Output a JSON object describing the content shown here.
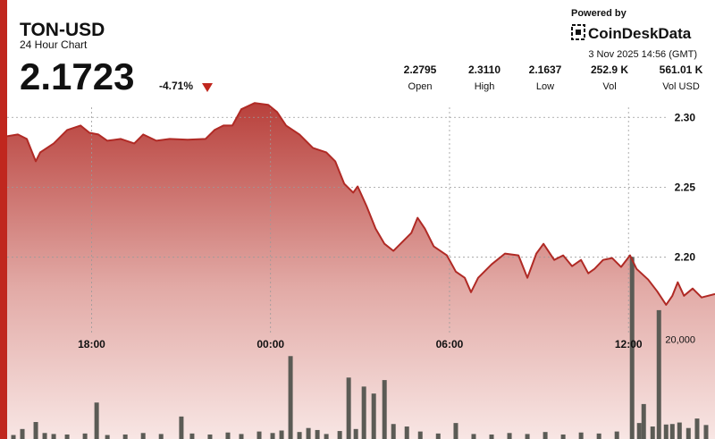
{
  "ticker": "TON-USD",
  "subtitle": "24 Hour Chart",
  "price": "2.1723",
  "change": "-4.71%",
  "powered_by": "Powered by",
  "brand": "CoinDeskData",
  "timestamp": "3 Nov 2025 14:56 (GMT)",
  "stats": [
    {
      "value": "2.2795",
      "label": "Open"
    },
    {
      "value": "2.3110",
      "label": "High"
    },
    {
      "value": "2.1637",
      "label": "Low"
    },
    {
      "value": "252.9 K",
      "label": "Vol"
    },
    {
      "value": "561.01 K",
      "label": "Vol USD"
    }
  ],
  "chart_data": {
    "type": "line",
    "xlim": [
      15.17,
      38.9
    ],
    "xticks": [
      {
        "value": 18,
        "label": "18:00"
      },
      {
        "value": 24,
        "label": "00:00"
      },
      {
        "value": 30,
        "label": "06:00"
      },
      {
        "value": 36,
        "label": "12:00"
      }
    ],
    "ylim": [
      2.07,
      2.32
    ],
    "yticks": [
      {
        "value": 2.3,
        "label": "2.30"
      },
      2.25,
      {
        "value": 2.2,
        "label": "2.20"
      }
    ],
    "y2lim": [
      0,
      70000
    ],
    "y2ticks": [
      {
        "value": 20000,
        "label": "20,000"
      }
    ],
    "grid": true,
    "series": [
      {
        "color": "#b02a25",
        "x": [
          15.17,
          15.53,
          15.83,
          16.13,
          16.28,
          16.73,
          17.18,
          17.63,
          17.93,
          18.23,
          18.53,
          18.98,
          19.43,
          19.73,
          20.17,
          20.62,
          21.22,
          21.82,
          22.12,
          22.42,
          22.72,
          23.02,
          23.47,
          23.92,
          24.22,
          24.52,
          24.97,
          25.42,
          25.87,
          26.17,
          26.47,
          26.77,
          26.92,
          27.22,
          27.52,
          27.82,
          28.12,
          28.42,
          28.72,
          28.93,
          29.17,
          29.47,
          29.91,
          30.21,
          30.51,
          30.72,
          30.96,
          31.41,
          31.86,
          32.31,
          32.61,
          32.91,
          33.15,
          33.51,
          33.81,
          34.11,
          34.41,
          34.65,
          34.86,
          35.15,
          35.45,
          35.75,
          36.05,
          36.27,
          36.66,
          36.96,
          37.26,
          37.47,
          37.65,
          37.86,
          38.15,
          38.45,
          38.9
        ],
        "values": [
          2.2865,
          2.2878,
          2.2846,
          2.2686,
          2.275,
          2.2814,
          2.291,
          2.2942,
          2.289,
          2.2878,
          2.2833,
          2.2846,
          2.2814,
          2.2878,
          2.2833,
          2.2846,
          2.284,
          2.2846,
          2.291,
          2.2942,
          2.2942,
          2.3058,
          2.3103,
          2.309,
          2.3038,
          2.2942,
          2.2878,
          2.2782,
          2.275,
          2.2686,
          2.2526,
          2.2462,
          2.2506,
          2.2365,
          2.2205,
          2.2096,
          2.2045,
          2.2109,
          2.2173,
          2.2282,
          2.2205,
          2.2077,
          2.2013,
          2.1897,
          2.1853,
          2.175,
          2.1853,
          2.1949,
          2.2026,
          2.2013,
          2.1853,
          2.2026,
          2.2096,
          2.1981,
          2.2013,
          2.1936,
          2.1981,
          2.1885,
          2.1917,
          2.1981,
          2.1994,
          2.193,
          2.2013,
          2.1917,
          2.184,
          2.1756,
          2.166,
          2.1724,
          2.1821,
          2.1724,
          2.1776,
          2.1712,
          2.1737
        ]
      },
      {
        "type": "bar",
        "axis": "y2",
        "color": "#5b5b55",
        "x": [
          15.38,
          15.68,
          16.13,
          16.43,
          16.73,
          17.18,
          17.78,
          18.17,
          18.53,
          19.13,
          19.73,
          20.33,
          21.01,
          21.37,
          21.97,
          22.57,
          23.02,
          23.62,
          24.07,
          24.37,
          24.67,
          24.97,
          25.27,
          25.57,
          25.87,
          26.32,
          26.62,
          26.86,
          27.13,
          27.46,
          27.82,
          28.12,
          28.57,
          29.02,
          29.62,
          30.21,
          30.81,
          31.41,
          32.01,
          32.61,
          33.21,
          33.81,
          34.41,
          35.01,
          35.61,
          36.12,
          36.36,
          36.51,
          36.81,
          37.02,
          37.26,
          37.47,
          37.71,
          38.01,
          38.3,
          38.6
        ],
        "values": [
          800,
          2000,
          3400,
          1200,
          1000,
          900,
          1100,
          7300,
          800,
          900,
          1200,
          1000,
          4500,
          1100,
          900,
          1300,
          1000,
          1500,
          1200,
          1700,
          16600,
          1400,
          2200,
          1800,
          1000,
          1600,
          12300,
          2000,
          10500,
          9100,
          11800,
          3000,
          2500,
          1500,
          1100,
          3200,
          1000,
          900,
          1200,
          1000,
          1400,
          900,
          1300,
          1100,
          1500,
          36500,
          3200,
          7000,
          2500,
          25800,
          2900,
          3000,
          3300,
          2200,
          4100,
          2800
        ]
      }
    ]
  }
}
